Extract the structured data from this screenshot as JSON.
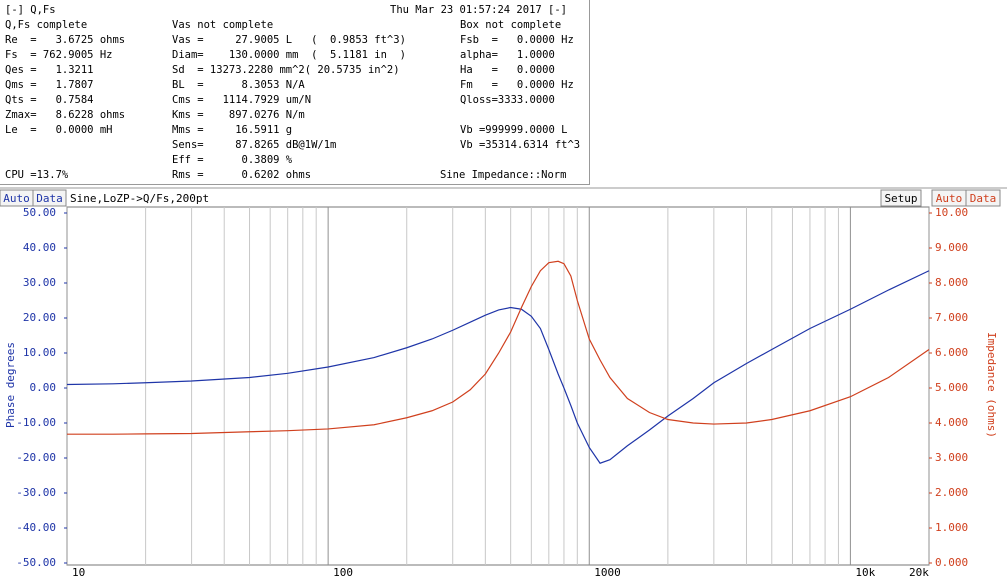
{
  "window": {
    "title": "[-] Q,Fs",
    "timestamp": "Thu Mar 23 01:57:24 2017 [-]"
  },
  "panel": {
    "columns": [
      {
        "header": "Q,Fs complete",
        "lines": [
          "Re  =   3.6725 ohms",
          "Fs  = 762.9005 Hz",
          "Qes =   1.3211",
          "Qms =   1.7807",
          "Qts =   0.7584",
          "Zmax=   8.6228 ohms",
          "Le  =   0.0000 mH"
        ]
      },
      {
        "header": "Vas not complete",
        "lines": [
          "Vas =     27.9005 L   (  0.9853 ft^3)",
          "Diam=    130.0000 mm  (  5.1181 in  )",
          "Sd  = 13273.2280 mm^2( 20.5735 in^2)",
          "BL  =      8.3053 N/A",
          "Cms =   1114.7929 um/N",
          "Kms =    897.0276 N/m",
          "Mms =     16.5911 g",
          "Sens=     87.8265 dB@1W/1m",
          "Eff =      0.3809 %",
          "Rms =      0.6202 ohms"
        ]
      },
      {
        "header": "Box not complete",
        "lines": [
          "Fsb  =   0.0000 Hz",
          "alpha=   1.0000",
          "Ha   =   0.0000",
          "Fm   =   0.0000 Hz",
          "Qloss=3333.0000"
        ]
      }
    ],
    "volume_lines": [
      "Vb =999999.0000 L",
      "Vb =35314.6314 ft^3"
    ],
    "cpu": "CPU =13.7%",
    "mode": "Sine Impedance::Norm"
  },
  "toolbar": {
    "left": [
      "Auto",
      "Data"
    ],
    "measurement": "Sine,LoZP->Q/Fs,200pt",
    "setup": "Setup",
    "right": [
      "Auto",
      "Data"
    ]
  },
  "chart_data": {
    "type": "line",
    "xscale": "log",
    "grid": true,
    "ylabel": "Phase degrees",
    "y2label": "Impedance (ohms)",
    "x": [
      10,
      15,
      20,
      30,
      50,
      70,
      100,
      150,
      200,
      250,
      300,
      350,
      400,
      450,
      500,
      550,
      600,
      650,
      700,
      760,
      800,
      850,
      900,
      1000,
      1100,
      1200,
      1400,
      1700,
      2000,
      2500,
      3000,
      4000,
      5000,
      7000,
      10000,
      14000,
      20000
    ],
    "xlim": [
      10,
      20000
    ],
    "xticks": [
      10,
      100,
      1000,
      {
        "value": 10000,
        "label": "10k"
      },
      {
        "value": 20000,
        "label": "20k"
      }
    ],
    "ylim": [
      -50,
      50
    ],
    "yticks": [
      {
        "value": -50,
        "label": "-50.00"
      },
      {
        "value": -40,
        "label": "-40.00"
      },
      {
        "value": -30,
        "label": "-30.00"
      },
      {
        "value": -20,
        "label": "-20.00"
      },
      {
        "value": -10,
        "label": "-10.00"
      },
      {
        "value": 0,
        "label": "0.00"
      },
      {
        "value": 10,
        "label": "10.00"
      },
      {
        "value": 20,
        "label": "20.00"
      },
      {
        "value": 30,
        "label": "30.00"
      },
      {
        "value": 40,
        "label": "40.00"
      },
      {
        "value": 50,
        "label": "50.00"
      }
    ],
    "y2lim": [
      0,
      10
    ],
    "y2ticks": [
      {
        "value": 0,
        "label": "0.000"
      },
      {
        "value": 1,
        "label": "1.000"
      },
      {
        "value": 2,
        "label": "2.000"
      },
      {
        "value": 3,
        "label": "3.000"
      },
      {
        "value": 4,
        "label": "4.000"
      },
      {
        "value": 5,
        "label": "5.000"
      },
      {
        "value": 6,
        "label": "6.000"
      },
      {
        "value": 7,
        "label": "7.000"
      },
      {
        "value": 8,
        "label": "8.000"
      },
      {
        "value": 9,
        "label": "9.000"
      },
      {
        "value": 10,
        "label": "10.00"
      }
    ],
    "y_color": "#1f35a8",
    "y2_color": "#d0401e",
    "series": [
      {
        "color": "#1f35a8",
        "values": [
          1.0,
          1.2,
          1.5,
          2.0,
          3.0,
          4.2,
          6.0,
          8.7,
          11.5,
          14,
          16.5,
          18.8,
          20.8,
          22.3,
          23,
          22.5,
          20.5,
          17,
          11,
          4,
          0,
          -5,
          -10,
          -17,
          -21.5,
          -20.5,
          -16.5,
          -12,
          -8,
          -3,
          1.5,
          7,
          11,
          17,
          22.5,
          28,
          33.5
        ]
      },
      {
        "color": "#d0401e",
        "axis": "y2",
        "values": [
          3.68,
          3.68,
          3.69,
          3.7,
          3.75,
          3.78,
          3.83,
          3.95,
          4.15,
          4.35,
          4.6,
          4.95,
          5.4,
          6.0,
          6.6,
          7.3,
          7.9,
          8.35,
          8.58,
          8.62,
          8.55,
          8.2,
          7.5,
          6.4,
          5.8,
          5.3,
          4.7,
          4.3,
          4.1,
          4.0,
          3.97,
          4.0,
          4.1,
          4.35,
          4.75,
          5.3,
          6.1
        ]
      }
    ]
  }
}
